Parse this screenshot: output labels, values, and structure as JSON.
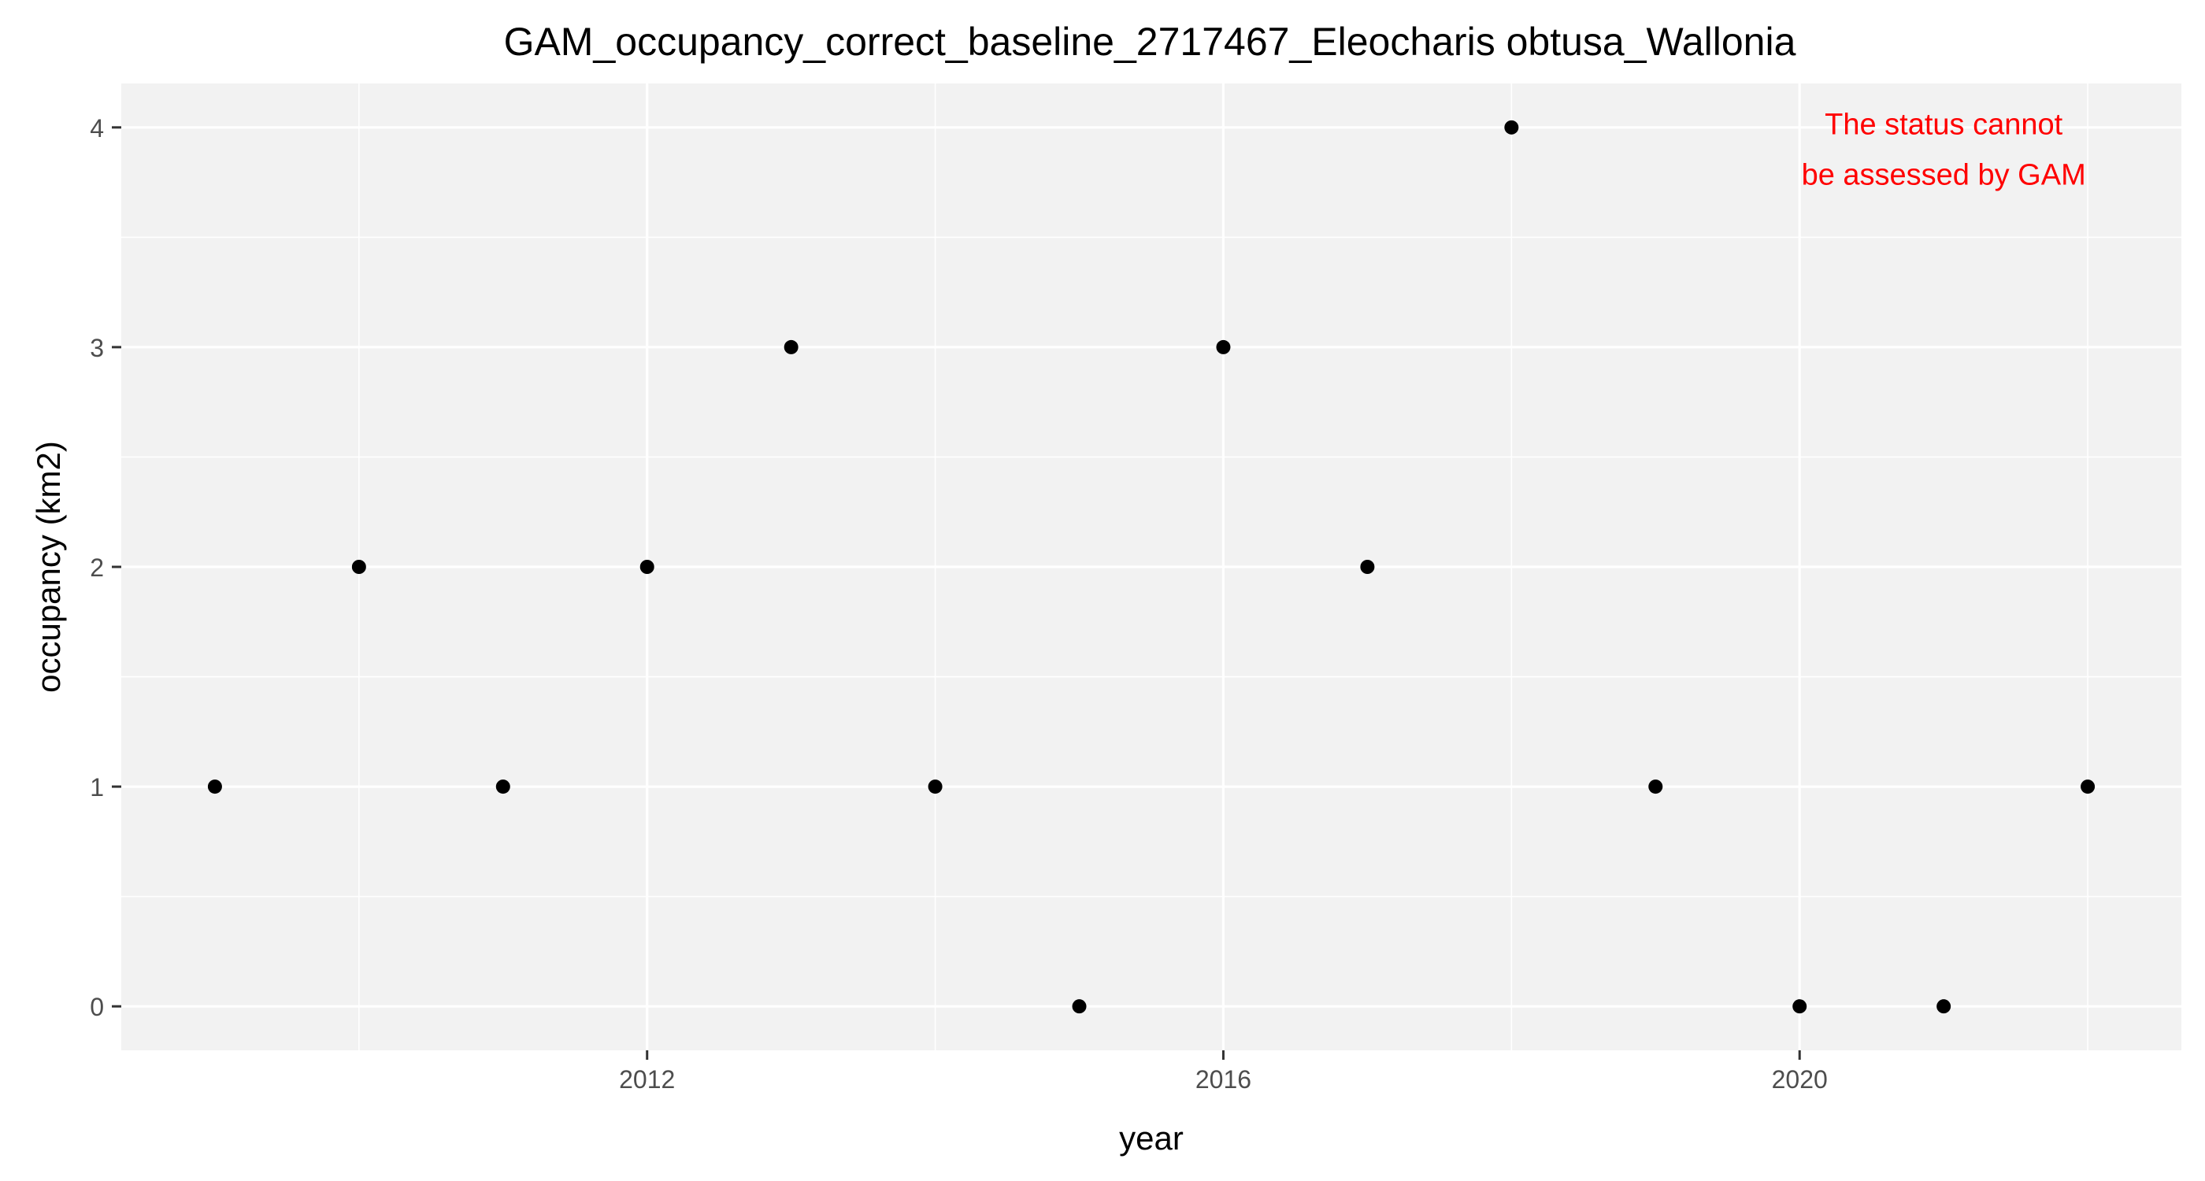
{
  "chart_data": {
    "type": "scatter",
    "title": "GAM_occupancy_correct_baseline_2717467_Eleocharis obtusa_Wallonia",
    "xlabel": "year",
    "ylabel": "occupancy (km2)",
    "x": [
      2009,
      2010,
      2011,
      2012,
      2013,
      2014,
      2015,
      2016,
      2017,
      2018,
      2019,
      2020,
      2021,
      2022
    ],
    "y": [
      1,
      2,
      1,
      2,
      3,
      1,
      0,
      3,
      2,
      4,
      1,
      0,
      0,
      1
    ],
    "xlim": [
      2008.35,
      2022.65
    ],
    "ylim": [
      -0.2,
      4.2
    ],
    "x_ticks": [
      2012,
      2016,
      2020
    ],
    "x_tick_labels": [
      "2012",
      "2016",
      "2020"
    ],
    "y_ticks": [
      0,
      1,
      2,
      3,
      4
    ],
    "y_tick_labels": [
      "0",
      "1",
      "2",
      "3",
      "4"
    ],
    "grid": true,
    "point_color": "#000000",
    "panel_color": "#f2f2f2",
    "annotation": {
      "lines": [
        "The status cannot",
        "be assessed by GAM"
      ],
      "color": "#ff0000",
      "x": 2021,
      "y": 3.9
    }
  }
}
